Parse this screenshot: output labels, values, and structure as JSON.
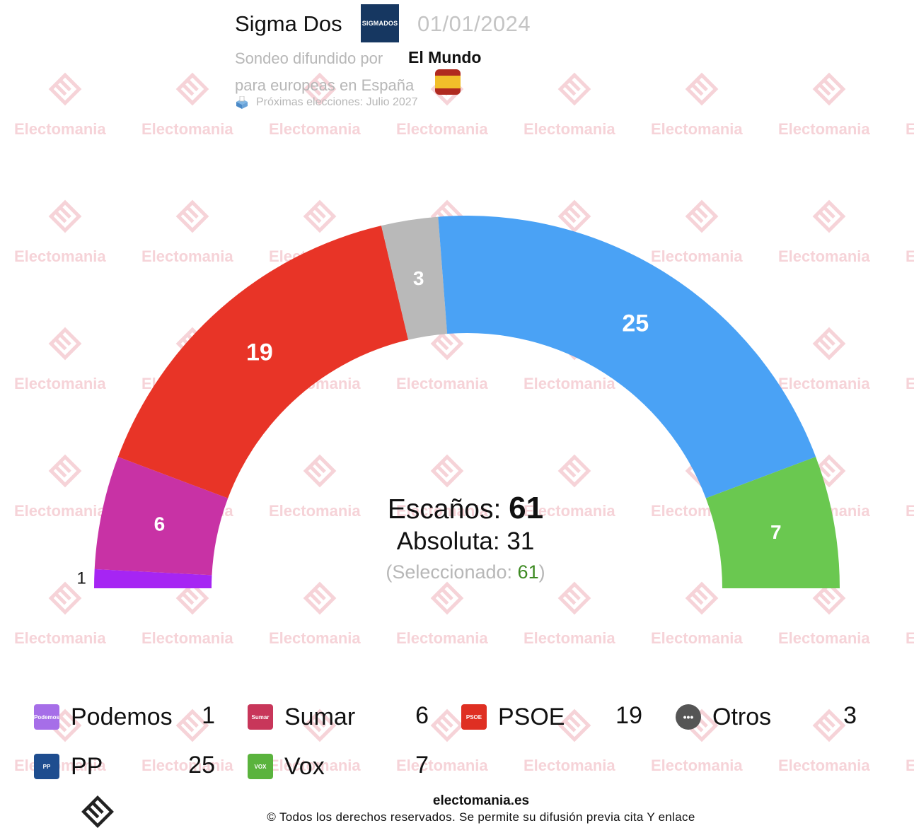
{
  "header": {
    "pollster": "Sigma Dos",
    "pollster_logo_text": "SIGMADOS",
    "date": "01/01/2024",
    "subtitle_prefix": "Sondeo difundido por",
    "media": "El Mundo",
    "subtitle_line2": "para europeas en España",
    "next_elections": "Próximas elecciones: Julio 2027",
    "flag_icon": "spain-flag-icon",
    "ballot_icon": "ballot-box-icon"
  },
  "watermark": {
    "text": "Electomania",
    "color": "#f6d3d8"
  },
  "chart_data": {
    "type": "pie",
    "subtype": "hemicycle",
    "categories": [
      "Podemos",
      "Sumar",
      "PSOE",
      "Otros",
      "PP",
      "Vox"
    ],
    "values": [
      1,
      6,
      19,
      3,
      25,
      7
    ],
    "colors": [
      "#a625f3",
      "#c832a5",
      "#e83427",
      "#b9b9b9",
      "#4aa2f5",
      "#6ac850"
    ],
    "labels": [
      "1",
      "6",
      "19",
      "3",
      "25",
      "7"
    ],
    "total_seats": 61,
    "majority": 31,
    "selected": 61
  },
  "center": {
    "seats_label": "Escaños:",
    "seats_value": "61",
    "majority_label": "Absoluta:",
    "majority_value": "31",
    "selected_prefix": "(Seleccionado:",
    "selected_value": "61",
    "selected_suffix": ")"
  },
  "legend": [
    {
      "name": "Podemos",
      "value": "1",
      "icon_text": "Podemos",
      "icon_color": "#a66ee8"
    },
    {
      "name": "Sumar",
      "value": "6",
      "icon_text": "Sumar",
      "icon_color": "#c8365a"
    },
    {
      "name": "PSOE",
      "value": "19",
      "icon_text": "PSOE",
      "icon_color": "#df2f22"
    },
    {
      "name": "Otros",
      "value": "3",
      "icon_text": "•••",
      "icon_color": "#555555"
    },
    {
      "name": "PP",
      "value": "25",
      "icon_text": "PP",
      "icon_color": "#1e4d8f"
    },
    {
      "name": "Vox",
      "value": "7",
      "icon_text": "VOX",
      "icon_color": "#5ab33d"
    }
  ],
  "footer": {
    "site": "electomania.es",
    "copyright": "© Todos los derechos reservados. Se permite su difusión previa cita Y enlace",
    "logo_icon": "electomania-logo-icon"
  }
}
